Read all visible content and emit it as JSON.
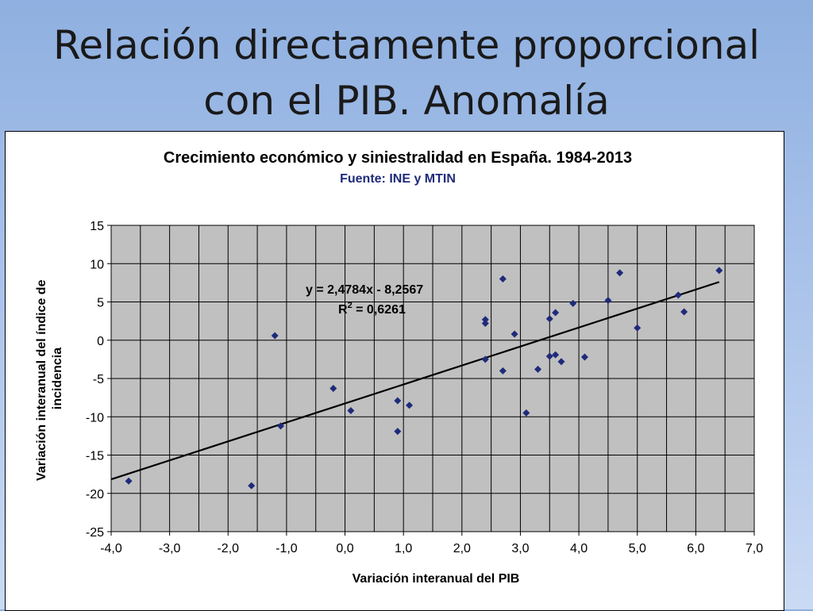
{
  "slide": {
    "title_line1": "Relación directamente proporcional",
    "title_line2": "con el PIB. Anomalía"
  },
  "chart_data": {
    "type": "scatter",
    "title": "Crecimiento económico y siniestralidad en España. 1984-2013",
    "subtitle": "Fuente: INE y MTIN",
    "xlabel": "Variación interanual del PIB",
    "ylabel_line1": "Variación interanual del índice de",
    "ylabel_line2": "incidencia",
    "xlim": [
      -4.0,
      7.0
    ],
    "ylim": [
      -25,
      15
    ],
    "x_ticks": [
      -4.0,
      -3.0,
      -2.0,
      -1.0,
      0.0,
      1.0,
      2.0,
      3.0,
      4.0,
      5.0,
      6.0,
      7.0
    ],
    "x_tick_labels": [
      "-4,0",
      "-3,0",
      "-2,0",
      "-1,0",
      "0,0",
      "1,0",
      "2,0",
      "3,0",
      "4,0",
      "5,0",
      "6,0",
      "7,0"
    ],
    "y_ticks": [
      -25,
      -20,
      -15,
      -10,
      -5,
      0,
      5,
      10,
      15
    ],
    "y_tick_labels": [
      "-25",
      "-20",
      "-15",
      "-10",
      "-5",
      "0",
      "5",
      "10",
      "15"
    ],
    "x_minor_step": 0.5,
    "grid": true,
    "plot_background": "#c0c0c0",
    "point_color": "#1f2a7a",
    "trend_color": "#000000",
    "points": [
      {
        "x": -3.7,
        "y": -18.4
      },
      {
        "x": -1.6,
        "y": -19.0
      },
      {
        "x": -1.2,
        "y": 0.6
      },
      {
        "x": -1.1,
        "y": -11.2
      },
      {
        "x": -0.2,
        "y": -6.3
      },
      {
        "x": 0.1,
        "y": -9.2
      },
      {
        "x": 0.9,
        "y": -7.9
      },
      {
        "x": 0.9,
        "y": -11.9
      },
      {
        "x": 1.1,
        "y": -8.5
      },
      {
        "x": 2.4,
        "y": 2.7
      },
      {
        "x": 2.4,
        "y": 2.2
      },
      {
        "x": 2.4,
        "y": -2.5
      },
      {
        "x": 2.7,
        "y": 8.0
      },
      {
        "x": 2.7,
        "y": -4.0
      },
      {
        "x": 2.9,
        "y": 0.8
      },
      {
        "x": 3.1,
        "y": -9.5
      },
      {
        "x": 3.3,
        "y": -3.8
      },
      {
        "x": 3.5,
        "y": 2.8
      },
      {
        "x": 3.5,
        "y": -2.1
      },
      {
        "x": 3.6,
        "y": 3.6
      },
      {
        "x": 3.6,
        "y": -1.9
      },
      {
        "x": 3.7,
        "y": -2.8
      },
      {
        "x": 3.9,
        "y": 4.8
      },
      {
        "x": 4.1,
        "y": -2.2
      },
      {
        "x": 4.5,
        "y": 5.2
      },
      {
        "x": 4.7,
        "y": 8.8
      },
      {
        "x": 5.0,
        "y": 1.6
      },
      {
        "x": 5.7,
        "y": 5.9
      },
      {
        "x": 5.8,
        "y": 3.7
      },
      {
        "x": 6.4,
        "y": 9.1
      }
    ],
    "trendline": {
      "slope": 2.4784,
      "intercept": -8.2567,
      "x_range": [
        -4.0,
        6.4
      ],
      "equation": "y = 2,4784x - 8,2567",
      "r2_label": "R",
      "r2_sup": "2",
      "r2_value": " = 0,6261"
    }
  }
}
